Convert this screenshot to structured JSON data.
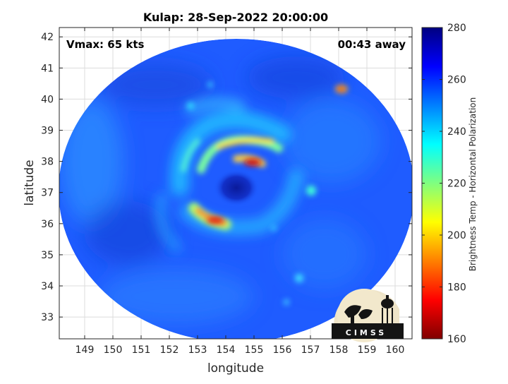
{
  "chart_data": {
    "type": "heatmap",
    "title": "Kulap: 28-Sep-2022 20:00:00",
    "xlabel": "longitude",
    "ylabel": "latitude",
    "xlim": [
      148.1,
      160.6
    ],
    "ylim": [
      32.3,
      42.3
    ],
    "xticks": [
      149,
      150,
      151,
      152,
      153,
      154,
      155,
      156,
      157,
      158,
      159,
      160
    ],
    "yticks": [
      33,
      34,
      35,
      36,
      37,
      38,
      39,
      40,
      41,
      42
    ],
    "grid": true,
    "annotations": {
      "top_left": "Vmax: 65 kts",
      "top_right": "00:43 away"
    },
    "colorbar": {
      "label": "Brightness Temp - Horizontal Polarization",
      "min": 160,
      "max": 280,
      "ticks": [
        160,
        180,
        200,
        220,
        240,
        260,
        280
      ],
      "colormap": "jet",
      "placement": "right"
    },
    "swath": {
      "center": [
        154.2,
        37.2
      ],
      "background_value": 255
    },
    "features": [
      {
        "label": "eye",
        "lon": 154.3,
        "lat": 37.15,
        "value": 270
      },
      {
        "label": "north eyewall rainband",
        "lon": 154.7,
        "lat": 38.5,
        "value": 225
      },
      {
        "label": "northeast eyewall core",
        "lon": 155.05,
        "lat": 37.9,
        "value": 178
      },
      {
        "label": "south eyewall rainband",
        "lon": 153.6,
        "lat": 36.0,
        "value": 190
      },
      {
        "label": "northwest arc",
        "lon": 153.0,
        "lat": 38.0,
        "value": 235
      },
      {
        "label": "convective cell NE",
        "lon": 158.2,
        "lat": 40.3,
        "value": 200
      },
      {
        "label": "convective cell E",
        "lon": 157.0,
        "lat": 37.0,
        "value": 228
      },
      {
        "label": "convective cell SE",
        "lon": 156.6,
        "lat": 34.2,
        "value": 240
      }
    ],
    "logo_text": "CIMSS"
  },
  "colors": {
    "background_swath": "#1f5cff",
    "axis": "#262626",
    "grid": "#dcdcdc"
  }
}
